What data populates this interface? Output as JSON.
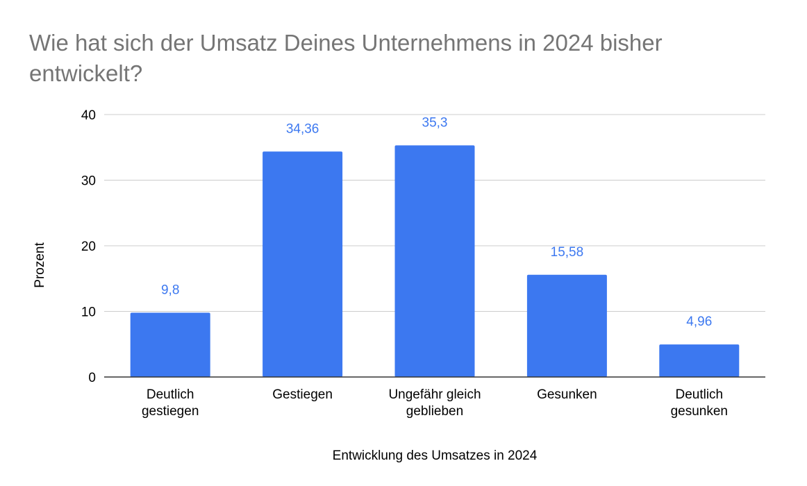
{
  "chart_data": {
    "type": "bar",
    "title": "Wie hat sich der Umsatz Deines Unternehmens in 2024 bisher entwickelt?",
    "xlabel": "Entwicklung des Umsatzes in 2024",
    "ylabel": "Prozent",
    "categories": [
      [
        "Deutlich",
        "gestiegen"
      ],
      [
        "Gestiegen"
      ],
      [
        "Ungefähr gleich",
        "geblieben"
      ],
      [
        "Gesunken"
      ],
      [
        "Deutlich",
        "gesunken"
      ]
    ],
    "values": [
      9.8,
      34.36,
      35.3,
      15.58,
      4.96
    ],
    "data_labels": [
      "9,8",
      "34,36",
      "35,3",
      "15,58",
      "4,96"
    ],
    "ylim": [
      0,
      40
    ],
    "yticks": [
      0,
      10,
      20,
      30,
      40
    ],
    "grid": true,
    "legend": "none",
    "colors": {
      "bar": "#3c78f0",
      "data_label": "#3c78f0",
      "gridline": "#cccccc",
      "baseline": "#333333",
      "title": "#757575"
    }
  }
}
